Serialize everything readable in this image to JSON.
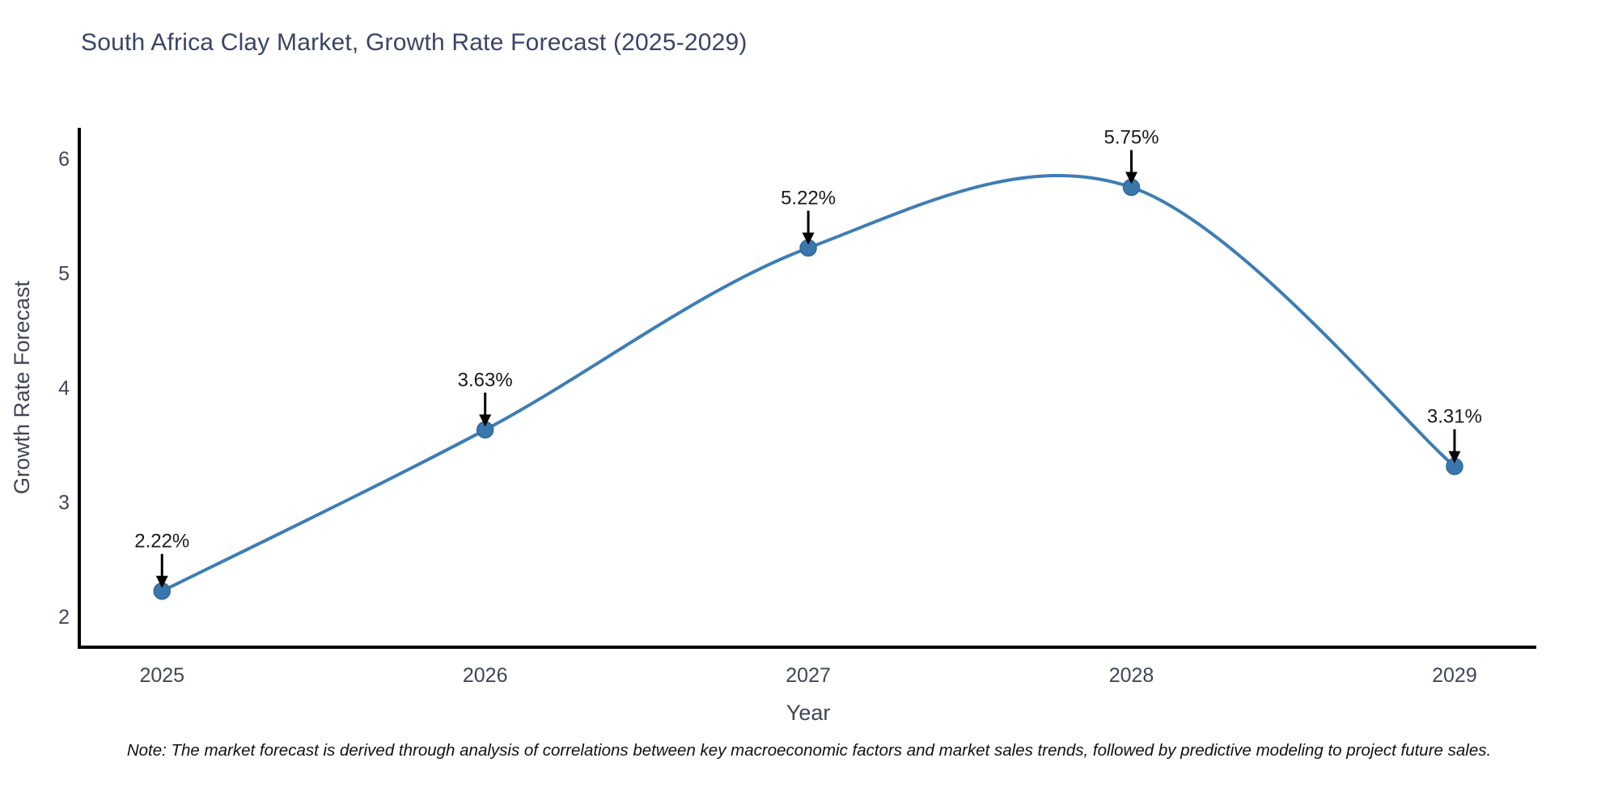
{
  "title": "South Africa Clay Market, Growth Rate Forecast (2025-2029)",
  "note": "Note: The market forecast is derived through analysis of correlations between key macroeconomic factors and market sales trends, followed by predictive modeling to project future sales.",
  "chart_data": {
    "type": "line",
    "title": "South Africa Clay Market, Growth Rate Forecast (2025-2029)",
    "xlabel": "Year",
    "ylabel": "Growth Rate Forecast",
    "x": [
      2025,
      2026,
      2027,
      2028,
      2029
    ],
    "values": [
      2.22,
      3.63,
      5.22,
      5.75,
      3.31
    ],
    "annotations": [
      "2.22%",
      "3.63%",
      "5.22%",
      "5.75%",
      "3.31%"
    ],
    "xticks": [
      "2025",
      "2026",
      "2027",
      "2028",
      "2029"
    ],
    "yticks": [
      2,
      3,
      4,
      5,
      6
    ],
    "ylim": [
      1.73,
      6.27
    ],
    "xlim": [
      2024.744,
      2029.253
    ],
    "line_shape": "spline",
    "grid": false,
    "legend_position": "none",
    "colors": {
      "line": "#3E7DB3",
      "marker": "#3A77AD",
      "marker_edge": "#32689A",
      "spine": "#000000",
      "tick_text": "#3F4656",
      "axis_title_text": "#3F4656",
      "title_text": "#3A4466",
      "annotation_text": "#1A1A1A",
      "annotation_arrow": "#000000",
      "note_text": "#111111"
    }
  }
}
